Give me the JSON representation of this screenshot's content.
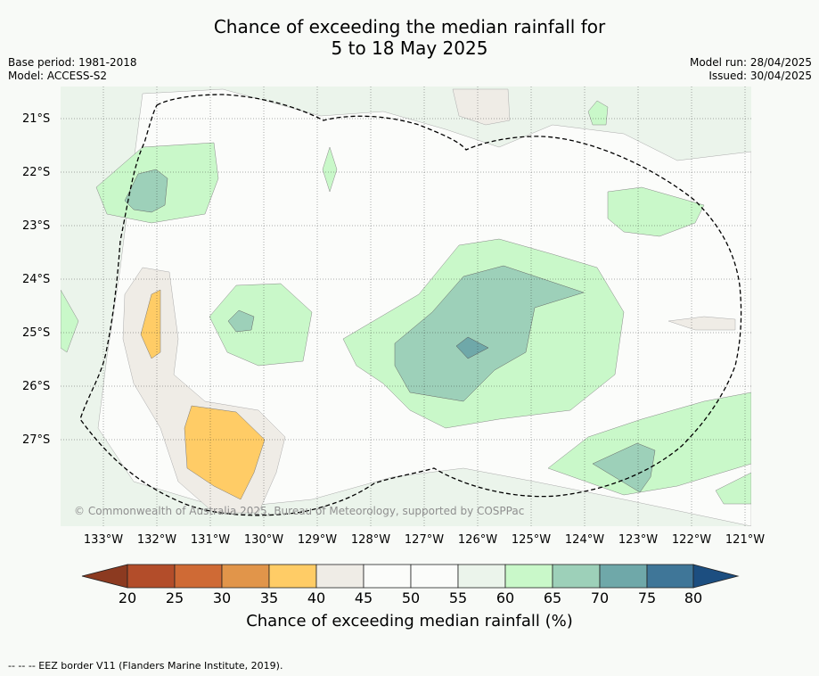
{
  "title_line1": "Chance of exceeding the median rainfall for",
  "title_line2": "5 to 18 May 2025",
  "meta_left": {
    "base_period": "Base period: 1981-2018",
    "model": "Model: ACCESS-S2"
  },
  "meta_right": {
    "model_run": "Model run: 28/04/2025",
    "issued": "Issued: 30/04/2025"
  },
  "latitudes": [
    "21°S",
    "22°S",
    "23°S",
    "24°S",
    "25°S",
    "26°S",
    "27°S"
  ],
  "longitudes": [
    "133°W",
    "132°W",
    "131°W",
    "130°W",
    "129°W",
    "128°W",
    "127°W",
    "126°W",
    "125°W",
    "124°W",
    "123°W",
    "122°W",
    "121°W"
  ],
  "copyright": "© Commonwealth of Australia 2025, Bureau of Meteorology, supported by COSPPac",
  "colorbar": {
    "ticks": [
      "20",
      "25",
      "30",
      "35",
      "40",
      "45",
      "50",
      "55",
      "60",
      "65",
      "70",
      "75",
      "80"
    ],
    "label": "Chance of exceeding median rainfall (%)",
    "colors": [
      "#8c3a20",
      "#b34d2a",
      "#cf6a35",
      "#e1954a",
      "#ffcc66",
      "#efece6",
      "#fbfcfa",
      "#fbfcfa",
      "#ebf4eb",
      "#c9f8c9",
      "#9dd0b9",
      "#6fa8a9",
      "#3f7698",
      "#1c4e80"
    ]
  },
  "footnote": "--  --  -- EEZ border V11 (Flanders Marine Institute, 2019)."
}
